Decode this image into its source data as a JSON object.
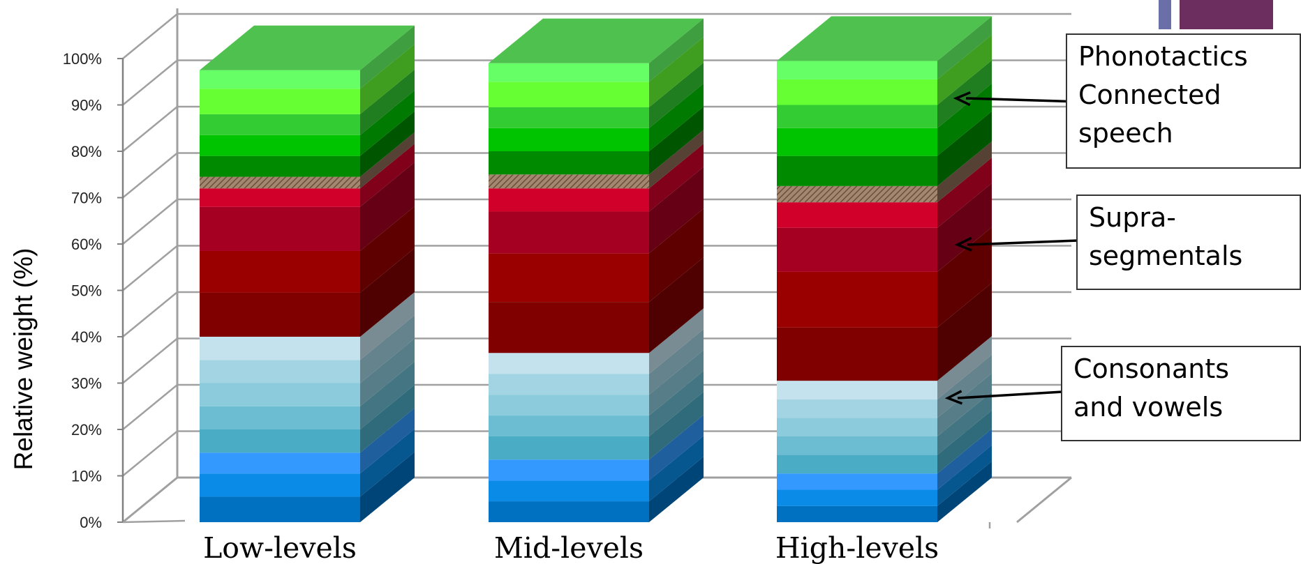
{
  "chart_data": {
    "type": "bar",
    "stacked": true,
    "style": "3d-stacked-column",
    "categories": [
      "Low-levels",
      "Mid-levels",
      "High-levels"
    ],
    "ylabel": "Relative weight (%)",
    "ylim": [
      0,
      100
    ],
    "yticks": [
      "0%",
      "10%",
      "20%",
      "30%",
      "40%",
      "50%",
      "60%",
      "70%",
      "80%",
      "90%",
      "100%"
    ],
    "grid": true,
    "series": [
      {
        "color": "#0070c0",
        "group": "Consonants and vowels",
        "values": [
          5.5,
          4.5,
          3.5
        ]
      },
      {
        "color": "#0a8be8",
        "group": "Consonants and vowels",
        "values": [
          5.0,
          4.5,
          3.5
        ]
      },
      {
        "color": "#3399ff",
        "group": "Consonants and vowels",
        "values": [
          4.5,
          4.5,
          3.5
        ]
      },
      {
        "color": "#4bacc6",
        "group": "Consonants and vowels",
        "values": [
          5.0,
          5.0,
          4.0
        ]
      },
      {
        "color": "#6cbcd2",
        "group": "Consonants and vowels",
        "values": [
          5.0,
          4.5,
          4.0
        ]
      },
      {
        "color": "#8ccbdc",
        "group": "Consonants and vowels",
        "values": [
          5.0,
          4.5,
          4.0
        ]
      },
      {
        "color": "#a3d4e3",
        "group": "Consonants and vowels",
        "values": [
          5.0,
          4.5,
          4.0
        ]
      },
      {
        "color": "#c4e2ed",
        "group": "Consonants and vowels",
        "values": [
          5.0,
          4.5,
          4.0
        ]
      },
      {
        "color": "#800000",
        "group": "Suprasegmentals",
        "values": [
          9.5,
          11.0,
          11.5
        ]
      },
      {
        "color": "#9a0000",
        "group": "Suprasegmentals",
        "values": [
          9.0,
          10.5,
          12.0
        ]
      },
      {
        "color": "#a50021",
        "group": "Suprasegmentals",
        "values": [
          9.5,
          9.0,
          9.5
        ]
      },
      {
        "color": "#d0002a",
        "group": "Suprasegmentals",
        "values": [
          4.0,
          5.0,
          5.5
        ]
      },
      {
        "color": "#8b6b55",
        "group": "Hatched",
        "values": [
          2.5,
          3.0,
          3.5
        ]
      },
      {
        "color": "#008a00",
        "group": "Phonotactics / Connected speech",
        "values": [
          4.5,
          5.0,
          6.5
        ]
      },
      {
        "color": "#00c400",
        "group": "Phonotactics / Connected speech",
        "values": [
          4.5,
          5.0,
          6.0
        ]
      },
      {
        "color": "#33cc33",
        "group": "Phonotactics / Connected speech",
        "values": [
          4.5,
          4.5,
          5.0
        ]
      },
      {
        "color": "#66ff33",
        "group": "Phonotactics / Connected speech",
        "values": [
          5.5,
          5.5,
          5.5
        ]
      },
      {
        "color": "#66ff66",
        "group": "Phonotactics / Connected speech",
        "values": [
          4.0,
          4.0,
          4.0
        ]
      }
    ]
  },
  "callouts": {
    "phonotactics": [
      "Phonotactics",
      "Connected",
      "speech"
    ],
    "suprasegmentals": [
      "Supra-",
      "segmentals"
    ],
    "consonants_vowels": [
      "Consonants",
      "and vowels"
    ]
  },
  "colors": {
    "top_face": "#4ec14e",
    "hatch": "#8b6b55",
    "decor_bar": "#6a6fa8",
    "decor_block": "#6b2e5e"
  }
}
